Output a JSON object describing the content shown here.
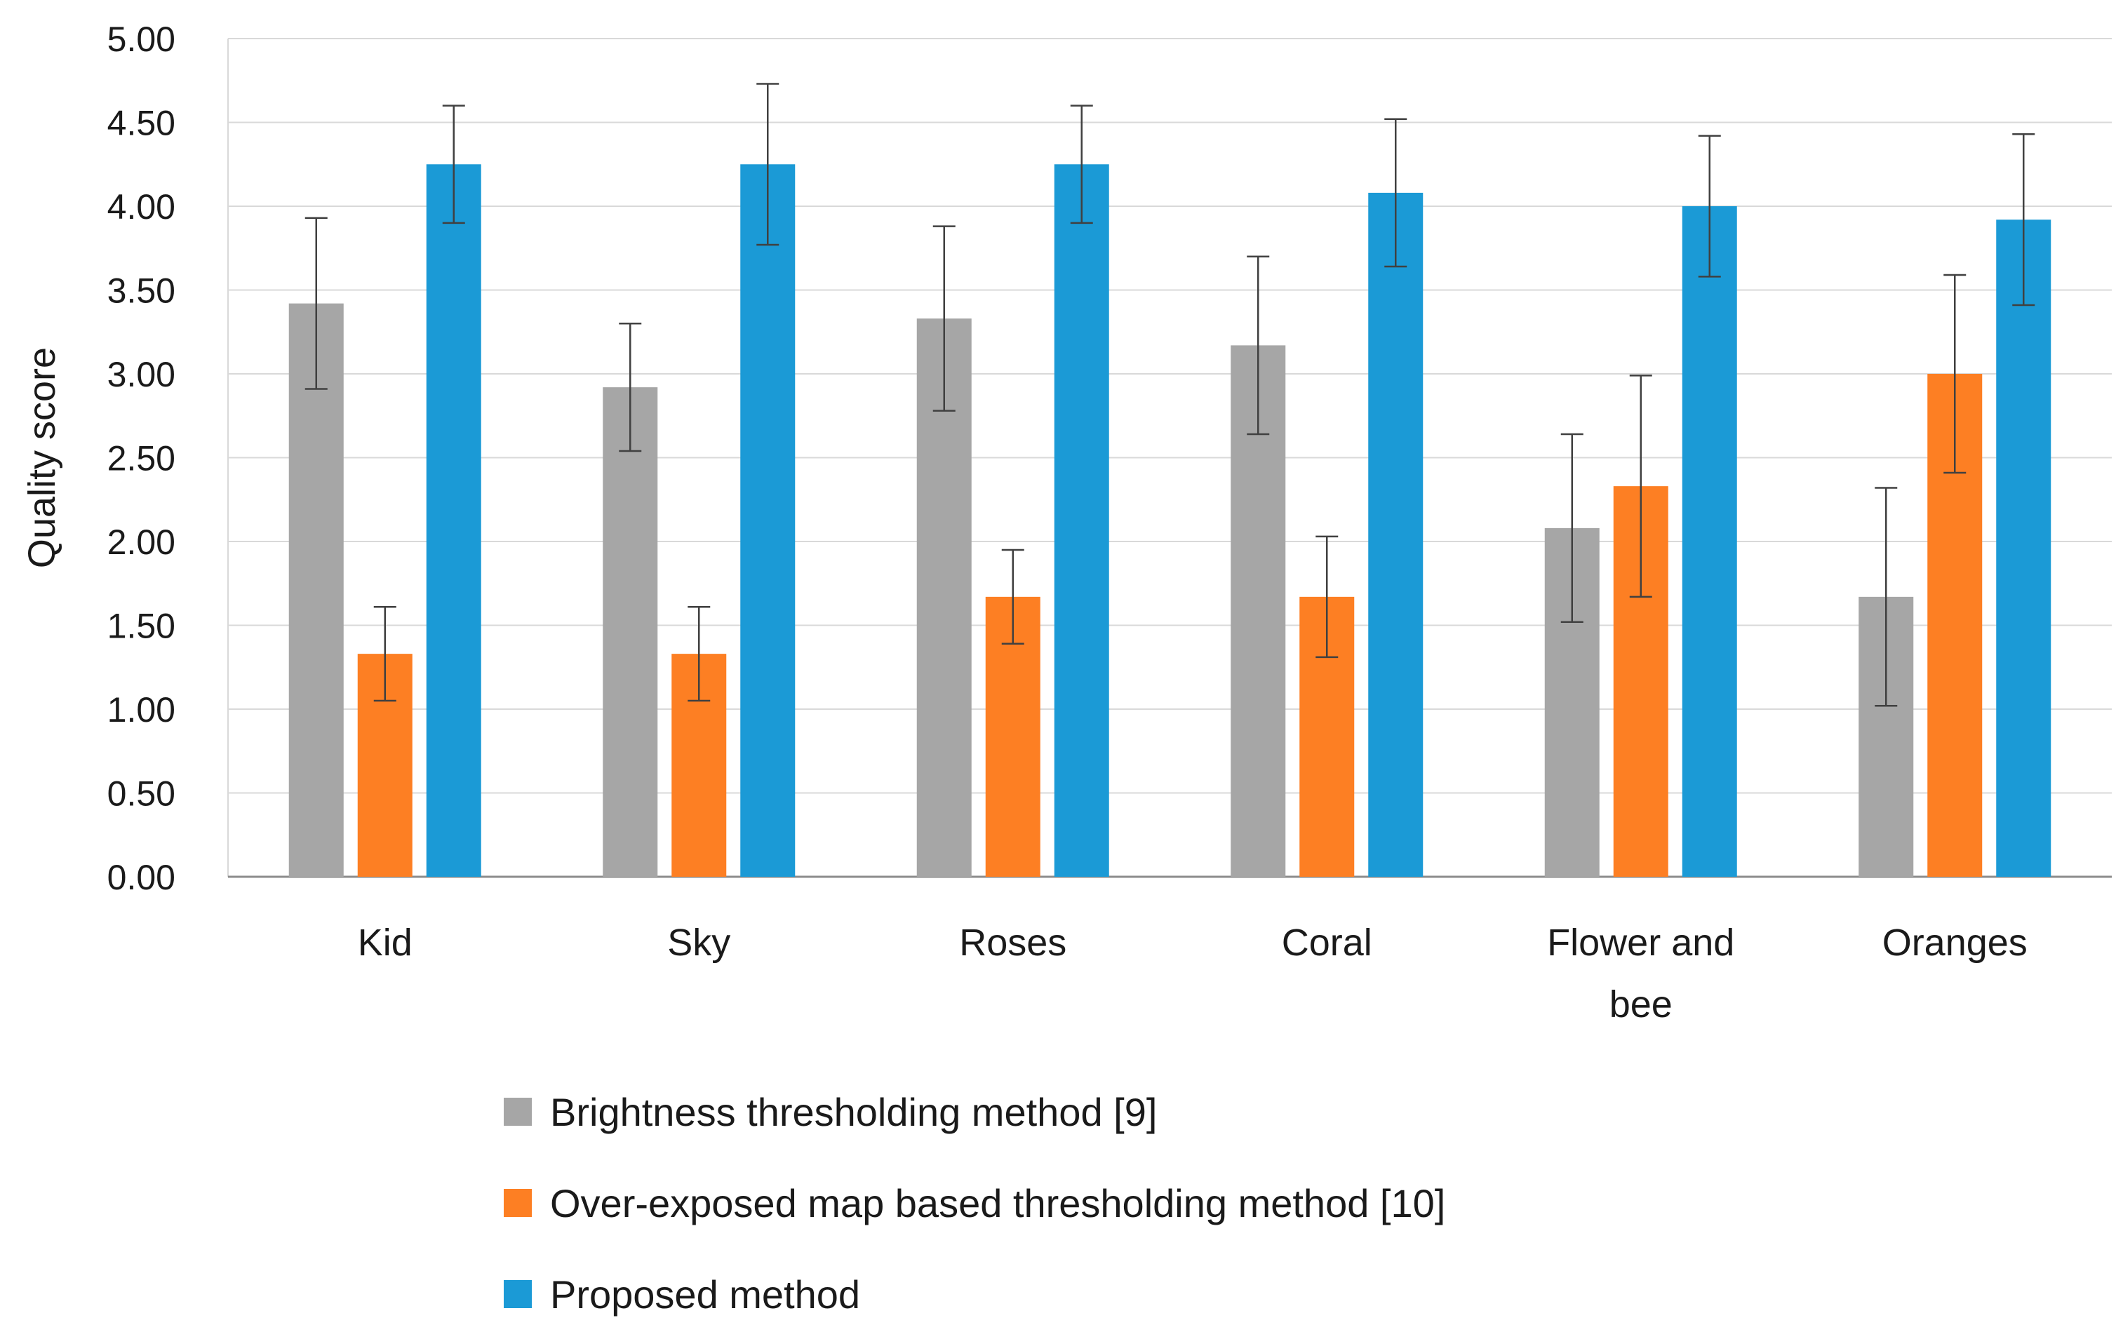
{
  "chart_data": {
    "type": "bar",
    "title": "",
    "xlabel": "",
    "ylabel": "Quality score",
    "ylim": [
      0,
      5
    ],
    "ytick_step": 0.5,
    "ytick_labels": [
      "0.00",
      "0.50",
      "1.00",
      "1.50",
      "2.00",
      "2.50",
      "3.00",
      "3.50",
      "4.00",
      "4.50",
      "5.00"
    ],
    "grid": true,
    "legend_position": "bottom",
    "categories": [
      [
        "Kid"
      ],
      [
        "Sky"
      ],
      [
        "Roses"
      ],
      [
        "Coral"
      ],
      [
        "Flower and",
        "bee"
      ],
      [
        "Oranges"
      ]
    ],
    "series": [
      {
        "name": "Brightness thresholding method [9]",
        "color": "#a6a6a6",
        "values": [
          3.42,
          2.92,
          3.33,
          3.17,
          2.08,
          1.67
        ],
        "error": [
          0.51,
          0.38,
          0.55,
          0.53,
          0.56,
          0.65
        ]
      },
      {
        "name": "Over-exposed map based thresholding method [10]",
        "color": "#fd7f23",
        "values": [
          1.33,
          1.33,
          1.67,
          1.67,
          2.33,
          3.0
        ],
        "error": [
          0.28,
          0.28,
          0.28,
          0.36,
          0.66,
          0.59
        ]
      },
      {
        "name": "Proposed method",
        "color": "#1b9ad6",
        "values": [
          4.25,
          4.25,
          4.25,
          4.08,
          4.0,
          3.92
        ],
        "error": [
          0.35,
          0.48,
          0.35,
          0.44,
          0.42,
          0.51
        ]
      }
    ]
  }
}
